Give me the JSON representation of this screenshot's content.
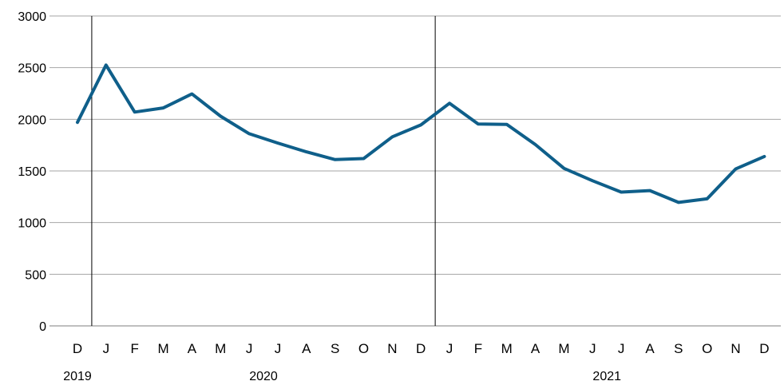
{
  "chart_data": {
    "type": "line",
    "categories": [
      "D",
      "J",
      "F",
      "M",
      "A",
      "M",
      "J",
      "J",
      "A",
      "S",
      "O",
      "N",
      "D",
      "J",
      "F",
      "M",
      "A",
      "M",
      "J",
      "J",
      "A",
      "S",
      "O",
      "N",
      "D"
    ],
    "year_labels": [
      {
        "label": "2019",
        "index": 0
      },
      {
        "label": "2020",
        "index": 6.5
      },
      {
        "label": "2021",
        "index": 18.5
      }
    ],
    "year_separators_after_index": [
      0,
      12
    ],
    "series": [
      {
        "color": "#0f5f8a",
        "values": [
          1970,
          2525,
          2070,
          2110,
          2245,
          2030,
          1860,
          1770,
          1685,
          1610,
          1620,
          1830,
          1945,
          2155,
          1955,
          1950,
          1755,
          1525,
          1405,
          1295,
          1310,
          1195,
          1230,
          1520,
          1640
        ]
      }
    ],
    "ylim": [
      0,
      3000
    ],
    "yticks": [
      0,
      500,
      1000,
      1500,
      2000,
      2500,
      3000
    ],
    "grid": true
  }
}
